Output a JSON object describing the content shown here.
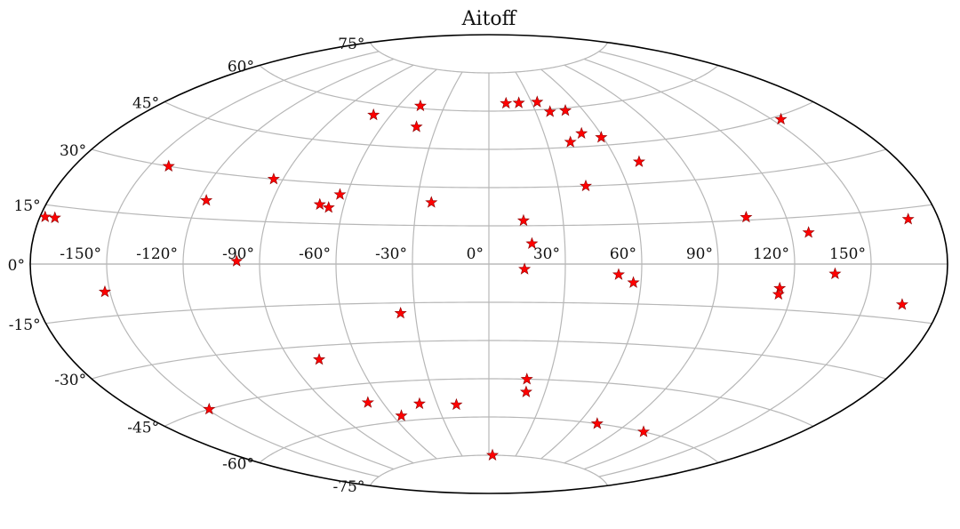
{
  "chart_data": {
    "type": "scatter",
    "projection": "Aitoff",
    "title": "Aitoff",
    "grid": true,
    "marker": "star",
    "marker_color": "#ff0000",
    "x_range": [
      -180,
      180
    ],
    "y_range": [
      -90,
      90
    ],
    "x_ticks": [
      -150,
      -120,
      -90,
      -60,
      -30,
      0,
      30,
      60,
      90,
      120,
      150
    ],
    "x_tick_labels": [
      "-150°",
      "-120°",
      "-90°",
      "-60°",
      "-30°",
      "0°",
      "30°",
      "60°",
      "90°",
      "120°",
      "150°"
    ],
    "y_ticks": [
      -75,
      -60,
      -45,
      -30,
      -15,
      0,
      15,
      30,
      45,
      60,
      75
    ],
    "y_tick_labels": [
      "-75°",
      "-60°",
      "-45°",
      "-30°",
      "-15°",
      "0°",
      "15°",
      "30°",
      "45°",
      "60°",
      "75°"
    ],
    "points": [
      {
        "lon": 12,
        "lat": 63
      },
      {
        "lon": 21,
        "lat": 63
      },
      {
        "lon": 34,
        "lat": 63
      },
      {
        "lon": -70,
        "lat": 56
      },
      {
        "lon": -46,
        "lat": 61
      },
      {
        "lon": -41,
        "lat": 53
      },
      {
        "lon": 39,
        "lat": 59
      },
      {
        "lon": 49,
        "lat": 59
      },
      {
        "lon": 50,
        "lat": 50
      },
      {
        "lon": 42,
        "lat": 47
      },
      {
        "lon": 59,
        "lat": 48
      },
      {
        "lon": 70,
        "lat": 38
      },
      {
        "lon": 42,
        "lat": 30
      },
      {
        "lon": 154,
        "lat": 44
      },
      {
        "lon": -142,
        "lat": 30
      },
      {
        "lon": -94,
        "lat": 30
      },
      {
        "lon": -63,
        "lat": 26
      },
      {
        "lon": -117,
        "lat": 21
      },
      {
        "lon": -70,
        "lat": 22
      },
      {
        "lon": -66,
        "lat": 21
      },
      {
        "lon": -24,
        "lat": 24
      },
      {
        "lon": 14,
        "lat": 17
      },
      {
        "lon": 104,
        "lat": 16
      },
      {
        "lon": 17,
        "lat": 8
      },
      {
        "lon": 127,
        "lat": 10
      },
      {
        "lon": 168,
        "lat": 12
      },
      {
        "lon": -174,
        "lat": 12
      },
      {
        "lon": -178,
        "lat": 12
      },
      {
        "lon": -99,
        "lat": 1
      },
      {
        "lon": 14,
        "lat": -2
      },
      {
        "lon": 51,
        "lat": -4
      },
      {
        "lon": 57,
        "lat": -7
      },
      {
        "lon": 136,
        "lat": -3
      },
      {
        "lon": 115,
        "lat": -8
      },
      {
        "lon": 115,
        "lat": -10
      },
      {
        "lon": 165,
        "lat": -11
      },
      {
        "lon": -152,
        "lat": -8
      },
      {
        "lon": -36,
        "lat": -19
      },
      {
        "lon": -77,
        "lat": -35
      },
      {
        "lon": -149,
        "lat": -45
      },
      {
        "lon": -68,
        "lat": -52
      },
      {
        "lon": -40,
        "lat": -54
      },
      {
        "lon": -55,
        "lat": -58
      },
      {
        "lon": -19,
        "lat": -55
      },
      {
        "lon": 19,
        "lat": -45
      },
      {
        "lon": 20,
        "lat": -50
      },
      {
        "lon": 106,
        "lat": -60
      },
      {
        "lon": 72,
        "lat": -60
      },
      {
        "lon": 4,
        "lat": -75
      }
    ]
  }
}
